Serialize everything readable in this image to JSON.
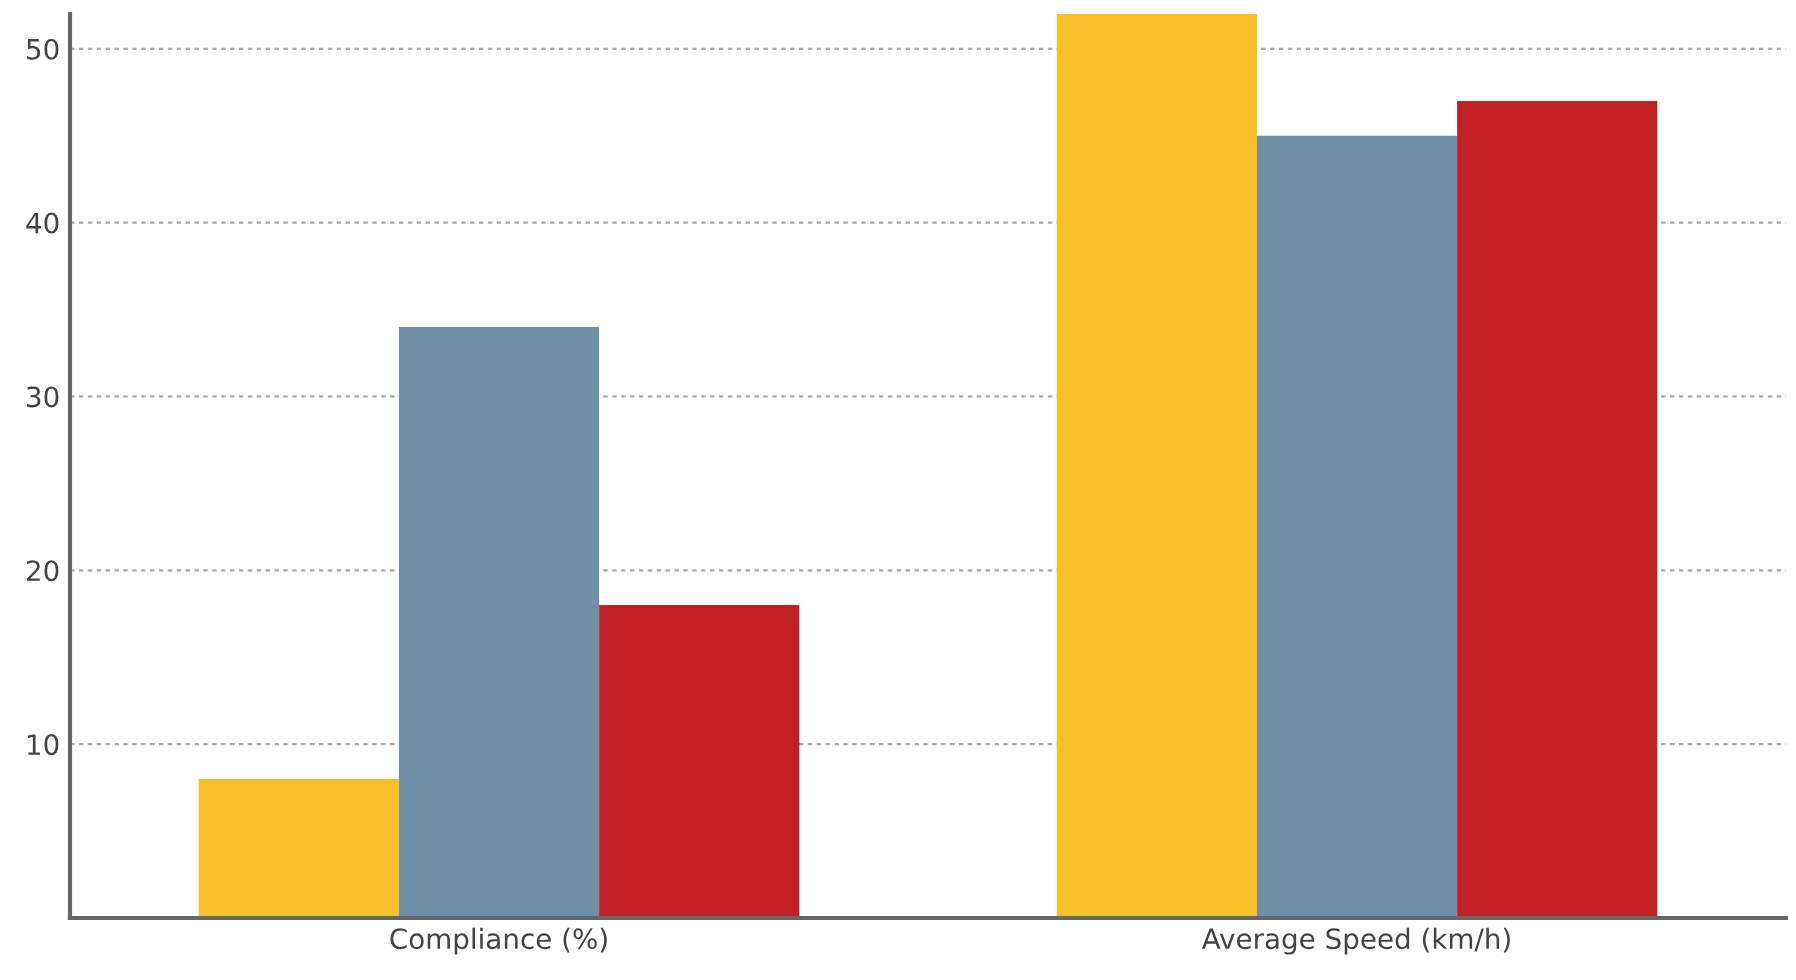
{
  "chart_data": {
    "type": "bar",
    "categories": [
      "Compliance (%)",
      "Average Speed (km/h)"
    ],
    "series": [
      {
        "color": "#f6c026",
        "values": [
          8,
          52
        ]
      },
      {
        "color": "#6f8fa6",
        "values": [
          34,
          45
        ]
      },
      {
        "color": "#c42127",
        "values": [
          18,
          47
        ]
      }
    ],
    "ylim": [
      0,
      52
    ],
    "yticks": [
      10,
      20,
      30,
      40,
      50
    ],
    "grid": "y",
    "legend": false
  }
}
